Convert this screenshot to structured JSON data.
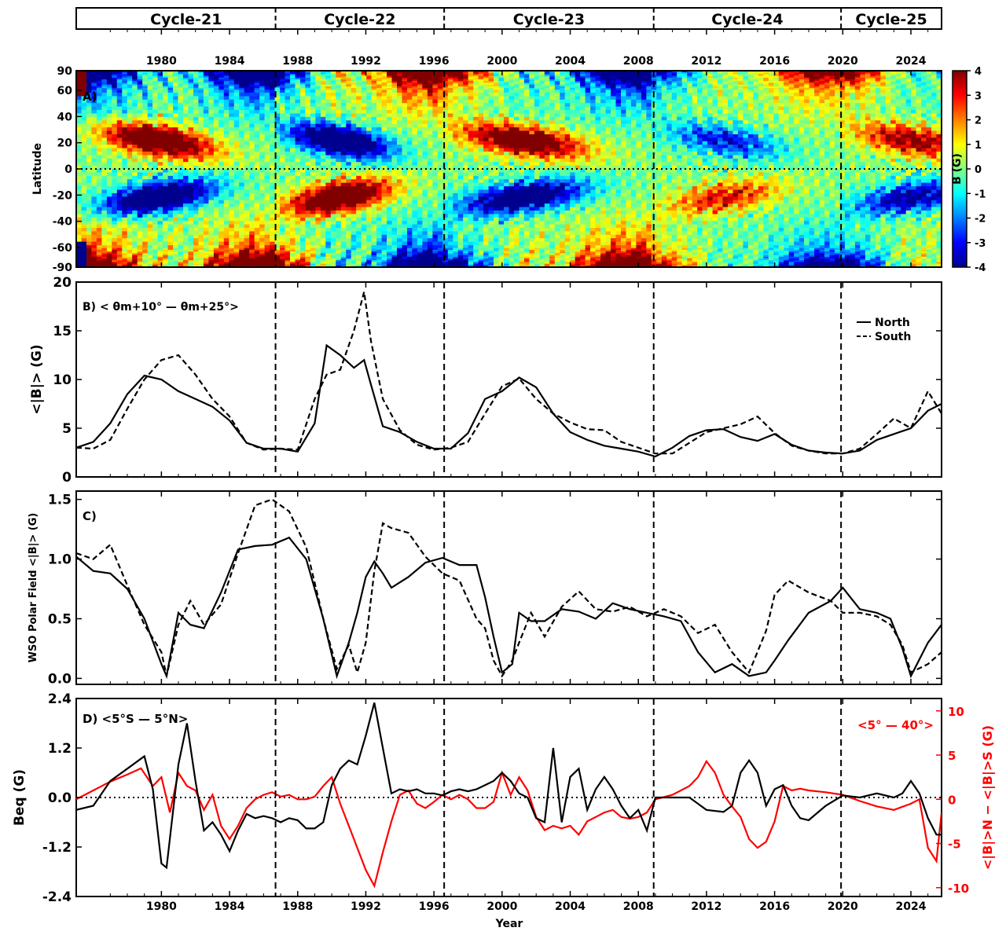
{
  "chart_data": [
    {
      "panel": "cycle-bar",
      "type": "table",
      "cycles": [
        {
          "label": "Cycle-21",
          "start": 1976.2,
          "end": 1986.7
        },
        {
          "label": "Cycle-22",
          "start": 1986.7,
          "end": 1996.6
        },
        {
          "label": "Cycle-23",
          "start": 1996.6,
          "end": 2008.9
        },
        {
          "label": "Cycle-24",
          "start": 2008.9,
          "end": 2019.9
        },
        {
          "label": "Cycle-25",
          "start": 2019.9,
          "end": 2025.8
        }
      ],
      "year_ticks": [
        "1980",
        "1984",
        "1988",
        "1992",
        "1996",
        "2000",
        "2004",
        "2008",
        "2012",
        "2016",
        "2020",
        "2024"
      ]
    },
    {
      "panel": "A",
      "type": "heatmap",
      "label": "A)",
      "ylabel": "Latitude",
      "colorbar_label": "B (G)",
      "xlim": [
        1975.0,
        2025.8
      ],
      "ylim": [
        -90,
        90
      ],
      "yticks": [
        "90",
        "60",
        "40",
        "20",
        "0",
        "-20",
        "-40",
        "-60",
        "-90"
      ],
      "colorbar_ticks": [
        "4",
        "3",
        "2",
        "1",
        "0",
        "-1",
        "-2",
        "-3",
        "-4"
      ],
      "zlim": [
        -4,
        4
      ],
      "colormap": "jet",
      "cycle_boundaries": [
        1986.7,
        1996.6,
        2008.9,
        2019.9
      ],
      "equator_dotted": true
    },
    {
      "panel": "B",
      "type": "line",
      "label": "B) < θm+10° — θm+25°>",
      "ylabel": "<|B|> (G)",
      "ylim": [
        0,
        20
      ],
      "yticks": [
        "0",
        "5",
        "10",
        "15",
        "20"
      ],
      "legend": [
        "North",
        "South"
      ],
      "legend_position": "right",
      "x": [
        1975.0,
        1976.0,
        1977.0,
        1978.0,
        1979.0,
        1980.0,
        1981.0,
        1982.0,
        1983.0,
        1984.0,
        1985.0,
        1986.0,
        1987.0,
        1988.0,
        1989.0,
        1989.7,
        1990.5,
        1991.3,
        1991.9,
        1992.3,
        1993.0,
        1994.0,
        1995.0,
        1996.0,
        1997.0,
        1998.0,
        1999.0,
        2000.0,
        2001.0,
        2002.0,
        2003.0,
        2004.0,
        2005.0,
        2006.0,
        2007.0,
        2008.0,
        2009.0,
        2010.0,
        2011.0,
        2012.0,
        2013.0,
        2014.0,
        2015.0,
        2016.0,
        2017.0,
        2018.0,
        2019.0,
        2020.0,
        2021.0,
        2022.0,
        2023.0,
        2024.0,
        2025.0,
        2025.8
      ],
      "series": [
        {
          "name": "North",
          "style": "solid",
          "values": [
            3.0,
            3.6,
            5.5,
            8.5,
            10.4,
            10.0,
            8.8,
            8.0,
            7.2,
            5.8,
            3.5,
            2.9,
            2.9,
            2.6,
            5.5,
            13.5,
            12.5,
            11.2,
            12.0,
            9.5,
            5.2,
            4.6,
            3.6,
            2.9,
            2.9,
            4.5,
            8.0,
            8.8,
            10.2,
            9.2,
            6.5,
            4.6,
            3.8,
            3.2,
            2.9,
            2.6,
            2.1,
            3.0,
            4.2,
            4.8,
            4.9,
            4.1,
            3.7,
            4.4,
            3.3,
            2.7,
            2.5,
            2.4,
            2.7,
            3.8,
            4.4,
            5.0,
            6.8,
            7.5
          ]
        },
        {
          "name": "South",
          "style": "dashed",
          "values": [
            3.0,
            2.9,
            3.8,
            7.0,
            10.0,
            12.0,
            12.5,
            10.5,
            8.0,
            6.2,
            3.5,
            2.8,
            2.9,
            2.8,
            8.0,
            10.5,
            11.0,
            15.0,
            19.0,
            14.0,
            8.0,
            4.8,
            3.3,
            2.8,
            3.0,
            3.6,
            6.5,
            9.3,
            10.1,
            8.0,
            6.5,
            5.6,
            4.9,
            4.8,
            3.6,
            3.0,
            2.4,
            2.4,
            3.5,
            4.6,
            5.0,
            5.4,
            6.2,
            4.5,
            3.2,
            2.7,
            2.4,
            2.4,
            2.9,
            4.4,
            6.0,
            5.0,
            8.8,
            6.5
          ]
        }
      ],
      "cycle_boundaries": [
        1986.7,
        1996.6,
        2008.9,
        2019.9
      ]
    },
    {
      "panel": "C",
      "type": "line",
      "label": "C)",
      "ylabel": "WSO Polar Field <|B|> (G)",
      "ylim": [
        -0.05,
        1.57
      ],
      "yticks": [
        "0.0",
        "0.5",
        "1.0",
        "1.5"
      ],
      "x": [
        1975.0,
        1976.0,
        1977.0,
        1978.0,
        1979.0,
        1980.0,
        1980.3,
        1981.0,
        1981.7,
        1982.5,
        1983.5,
        1984.5,
        1985.5,
        1986.5,
        1987.5,
        1988.5,
        1989.5,
        1990.3,
        1991.0,
        1991.5,
        1992.0,
        1992.5,
        1993.0,
        1993.5,
        1994.5,
        1995.5,
        1996.5,
        1997.5,
        1998.5,
        1999.0,
        1999.5,
        2000.0,
        2000.6,
        2001.0,
        2001.7,
        2002.5,
        2003.5,
        2004.5,
        2005.5,
        2006.5,
        2007.5,
        2008.5,
        2009.5,
        2010.5,
        2011.5,
        2012.5,
        2013.5,
        2014.5,
        2015.5,
        2016.0,
        2016.8,
        2018.0,
        2019.3,
        2020.0,
        2021.0,
        2022.0,
        2022.8,
        2023.5,
        2024.0,
        2025.0,
        2025.8
      ],
      "series": [
        {
          "name": "North",
          "style": "solid",
          "values": [
            1.02,
            0.9,
            0.88,
            0.75,
            0.5,
            0.12,
            0.02,
            0.55,
            0.45,
            0.42,
            0.72,
            1.08,
            1.11,
            1.12,
            1.18,
            1.0,
            0.5,
            0.02,
            0.3,
            0.55,
            0.85,
            0.98,
            0.88,
            0.76,
            0.85,
            0.97,
            1.01,
            0.95,
            0.95,
            0.68,
            0.35,
            0.05,
            0.12,
            0.55,
            0.48,
            0.48,
            0.58,
            0.56,
            0.5,
            0.63,
            0.58,
            0.55,
            0.52,
            0.48,
            0.22,
            0.05,
            0.12,
            0.02,
            0.05,
            0.15,
            0.32,
            0.55,
            0.65,
            0.76,
            0.58,
            0.55,
            0.5,
            0.25,
            0.02,
            0.3,
            0.45
          ]
        },
        {
          "name": "South",
          "style": "dashed",
          "values": [
            1.05,
            1.0,
            1.12,
            0.78,
            0.45,
            0.22,
            0.02,
            0.45,
            0.65,
            0.45,
            0.62,
            1.05,
            1.45,
            1.5,
            1.4,
            1.1,
            0.5,
            0.08,
            0.28,
            0.05,
            0.3,
            0.9,
            1.3,
            1.26,
            1.22,
            1.02,
            0.88,
            0.82,
            0.5,
            0.42,
            0.15,
            0.02,
            0.15,
            0.3,
            0.55,
            0.35,
            0.6,
            0.73,
            0.58,
            0.56,
            0.6,
            0.52,
            0.58,
            0.52,
            0.38,
            0.45,
            0.22,
            0.05,
            0.4,
            0.7,
            0.82,
            0.72,
            0.65,
            0.55,
            0.55,
            0.52,
            0.45,
            0.28,
            0.05,
            0.12,
            0.22
          ]
        }
      ],
      "cycle_boundaries": [
        1986.7,
        1996.6,
        2008.9,
        2019.9
      ]
    },
    {
      "panel": "D",
      "type": "line",
      "label": "D) <5°S — 5°N>",
      "right_label": "<5° — 40°>",
      "ylabel": "Beq (G)",
      "ylabel_right": "<|B|>N − <|B|>S (G)",
      "xlabel": "Year",
      "ylim": [
        -2.4,
        2.4
      ],
      "ylim_right": [
        -11,
        11.4
      ],
      "yticks": [
        "2.4",
        "1.2",
        "0.0",
        "-1.2",
        "-2.4"
      ],
      "yticks_right": [
        "10",
        "5",
        "0",
        "-5",
        "-10"
      ],
      "xticks": [
        "1980",
        "1984",
        "1988",
        "1992",
        "1996",
        "2000",
        "2004",
        "2008",
        "2012",
        "2016",
        "2020",
        "2024"
      ],
      "series": [
        {
          "name": "",
          "axis": "left",
          "color": "#000000",
          "x": [
            1975.0,
            1976.0,
            1977.0,
            1978.0,
            1979.0,
            1979.5,
            1980.0,
            1980.3,
            1981.0,
            1981.5,
            1982.0,
            1982.5,
            1983.0,
            1983.5,
            1984.0,
            1984.5,
            1985.0,
            1985.5,
            1986.0,
            1986.5,
            1987.0,
            1987.5,
            1988.0,
            1988.5,
            1989.0,
            1989.5,
            1990.0,
            1990.5,
            1991.0,
            1991.5,
            1992.0,
            1992.5,
            1993.0,
            1993.5,
            1994.0,
            1994.5,
            1995.0,
            1995.5,
            1996.0,
            1996.5,
            1997.0,
            1997.5,
            1998.0,
            1998.5,
            1999.0,
            1999.5,
            2000.0,
            2000.5,
            2001.0,
            2001.5,
            2002.0,
            2002.5,
            2003.0,
            2003.5,
            2004.0,
            2004.5,
            2005.0,
            2005.5,
            2006.0,
            2006.5,
            2007.0,
            2007.5,
            2008.0,
            2008.5,
            2009.0,
            2010.0,
            2011.0,
            2012.0,
            2013.0,
            2013.5,
            2014.0,
            2014.5,
            2015.0,
            2015.5,
            2016.0,
            2016.5,
            2017.0,
            2017.5,
            2018.0,
            2019.0,
            2020.0,
            2021.0,
            2022.0,
            2023.0,
            2023.5,
            2024.0,
            2024.5,
            2025.0,
            2025.5,
            2025.8
          ],
          "values": [
            -0.3,
            -0.2,
            0.4,
            0.7,
            1.0,
            0.2,
            -1.6,
            -1.7,
            0.8,
            1.8,
            0.4,
            -0.8,
            -0.6,
            -0.9,
            -1.3,
            -0.8,
            -0.4,
            -0.5,
            -0.45,
            -0.5,
            -0.6,
            -0.5,
            -0.55,
            -0.75,
            -0.75,
            -0.6,
            0.3,
            0.7,
            0.9,
            0.8,
            1.5,
            2.3,
            1.2,
            0.1,
            0.2,
            0.15,
            0.2,
            0.1,
            0.1,
            0.05,
            0.15,
            0.2,
            0.15,
            0.2,
            0.3,
            0.4,
            0.6,
            0.4,
            0.1,
            0.0,
            -0.5,
            -0.6,
            1.2,
            -0.6,
            0.5,
            0.7,
            -0.3,
            0.2,
            0.5,
            0.2,
            -0.2,
            -0.5,
            -0.3,
            -0.8,
            0.0,
            0.0,
            0.0,
            -0.3,
            -0.35,
            -0.2,
            0.6,
            0.9,
            0.6,
            -0.2,
            0.2,
            0.3,
            -0.2,
            -0.5,
            -0.55,
            -0.2,
            0.05,
            0.0,
            0.1,
            0.0,
            0.1,
            0.4,
            0.1,
            -0.5,
            -0.9,
            -0.9
          ]
        },
        {
          "name": "",
          "axis": "right",
          "color": "#ff0000",
          "x": [
            1975.0,
            1976.0,
            1977.0,
            1978.0,
            1978.8,
            1979.5,
            1980.0,
            1980.5,
            1981.0,
            1981.5,
            1982.0,
            1982.5,
            1983.0,
            1983.5,
            1984.0,
            1984.5,
            1985.0,
            1985.5,
            1986.0,
            1986.5,
            1987.0,
            1987.5,
            1988.0,
            1988.5,
            1989.0,
            1989.5,
            1990.0,
            1990.5,
            1991.0,
            1991.5,
            1992.0,
            1992.5,
            1993.0,
            1993.5,
            1994.0,
            1994.5,
            1995.0,
            1995.5,
            1996.0,
            1996.5,
            1997.0,
            1997.5,
            1998.0,
            1998.5,
            1999.0,
            1999.5,
            2000.0,
            2000.5,
            2001.0,
            2001.5,
            2002.0,
            2002.5,
            2003.0,
            2003.5,
            2004.0,
            2004.5,
            2005.0,
            2005.5,
            2006.0,
            2006.5,
            2007.0,
            2007.5,
            2008.0,
            2008.5,
            2009.0,
            2010.0,
            2011.0,
            2011.5,
            2012.0,
            2012.5,
            2013.0,
            2013.5,
            2014.0,
            2014.5,
            2015.0,
            2015.5,
            2016.0,
            2016.5,
            2017.0,
            2017.5,
            2018.0,
            2019.0,
            2020.0,
            2021.0,
            2022.0,
            2023.0,
            2024.0,
            2024.5,
            2025.0,
            2025.5,
            2025.8
          ],
          "values": [
            0.0,
            1.0,
            2.0,
            2.8,
            3.5,
            1.5,
            2.5,
            -1.5,
            3.0,
            1.5,
            1.0,
            -1.2,
            0.5,
            -3.0,
            -4.5,
            -3.0,
            -1.0,
            0.0,
            0.5,
            0.8,
            0.3,
            0.5,
            0.0,
            0.0,
            0.3,
            1.5,
            2.5,
            -0.5,
            -3.0,
            -5.5,
            -8.0,
            -9.8,
            -6.0,
            -2.5,
            0.5,
            1.0,
            -0.5,
            -1.0,
            -0.3,
            0.5,
            0.0,
            0.5,
            0.0,
            -1.0,
            -1.0,
            -0.3,
            3.0,
            0.5,
            2.5,
            1.0,
            -2.0,
            -3.5,
            -3.0,
            -3.3,
            -3.0,
            -4.0,
            -2.5,
            -2.0,
            -1.5,
            -1.2,
            -2.0,
            -2.2,
            -2.0,
            -1.5,
            0.0,
            0.5,
            1.5,
            2.5,
            4.3,
            3.0,
            0.5,
            -0.8,
            -2.0,
            -4.5,
            -5.5,
            -4.8,
            -2.5,
            1.5,
            1.0,
            1.2,
            1.0,
            0.8,
            0.5,
            -0.2,
            -0.8,
            -1.2,
            -0.5,
            0.0,
            -5.5,
            -7.0,
            -1.5
          ]
        }
      ],
      "cycle_boundaries": [
        1986.7,
        1996.6,
        2008.9,
        2019.9
      ]
    }
  ]
}
